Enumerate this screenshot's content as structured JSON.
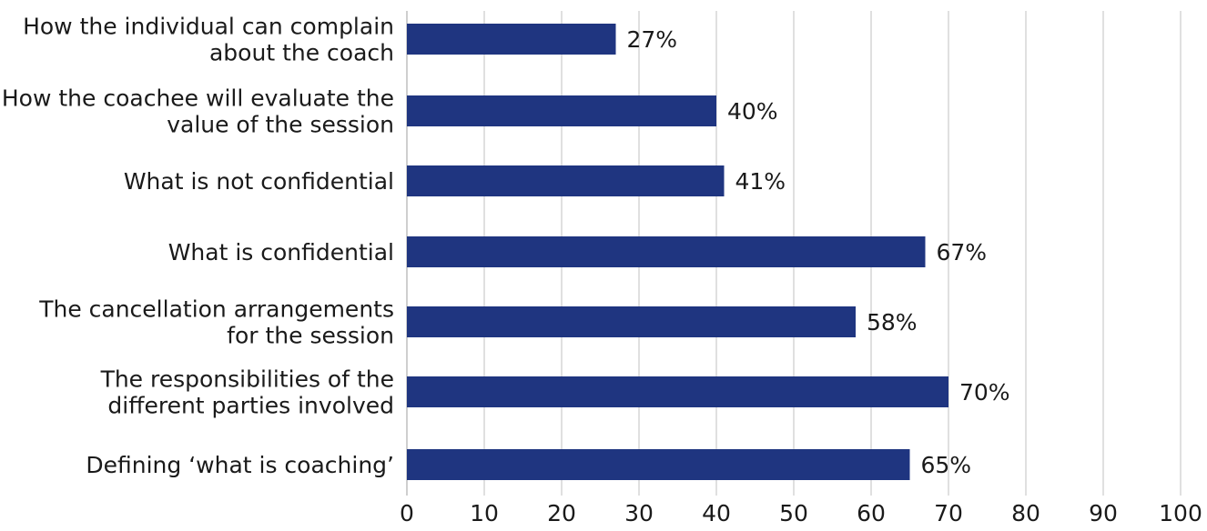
{
  "chart_data": {
    "type": "bar",
    "orientation": "horizontal",
    "categories": [
      [
        "How the individual can complain",
        "about the coach"
      ],
      [
        "How the coachee will evaluate the",
        "value of the session"
      ],
      [
        "What is not confidential"
      ],
      [
        "What is confidential"
      ],
      [
        "The cancellation arrangements",
        "for the session"
      ],
      [
        "The responsibilities of the",
        "different parties involved"
      ],
      [
        "Defining ‘what is coaching’"
      ]
    ],
    "values": [
      27,
      40,
      41,
      67,
      58,
      70,
      65
    ],
    "value_labels": [
      "27%",
      "40%",
      "41%",
      "67%",
      "58%",
      "70%",
      "65%"
    ],
    "xlim": [
      0,
      100
    ],
    "xticks": [
      0,
      10,
      20,
      30,
      40,
      50,
      60,
      70,
      80,
      90,
      100
    ],
    "xtick_labels": [
      "0",
      "10",
      "20",
      "30",
      "40",
      "50",
      "60",
      "70",
      "80",
      "90",
      "100"
    ],
    "grid": "vertical",
    "legend": "none",
    "bar_color": "#1f3580"
  }
}
